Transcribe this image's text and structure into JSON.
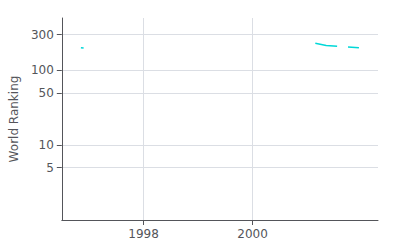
{
  "chart_data": {
    "type": "line",
    "ylabel": "World Ranking",
    "color": "#00d8d8",
    "series": [
      {
        "x": [
          1996.85,
          1996.9
        ],
        "values": [
          200,
          198
        ]
      },
      {
        "x": [
          2001.15,
          2001.35,
          2001.55
        ],
        "values": [
          230,
          215,
          210
        ]
      },
      {
        "x": [
          2001.75,
          2001.95
        ],
        "values": [
          205,
          200
        ]
      }
    ],
    "xlim": [
      1996.5,
      2002.3
    ],
    "xticks": [
      1998,
      2000
    ],
    "ylim": [
      1,
      500
    ],
    "yticks": [
      5,
      10,
      50,
      100,
      300
    ],
    "log": "y",
    "grid": true
  }
}
